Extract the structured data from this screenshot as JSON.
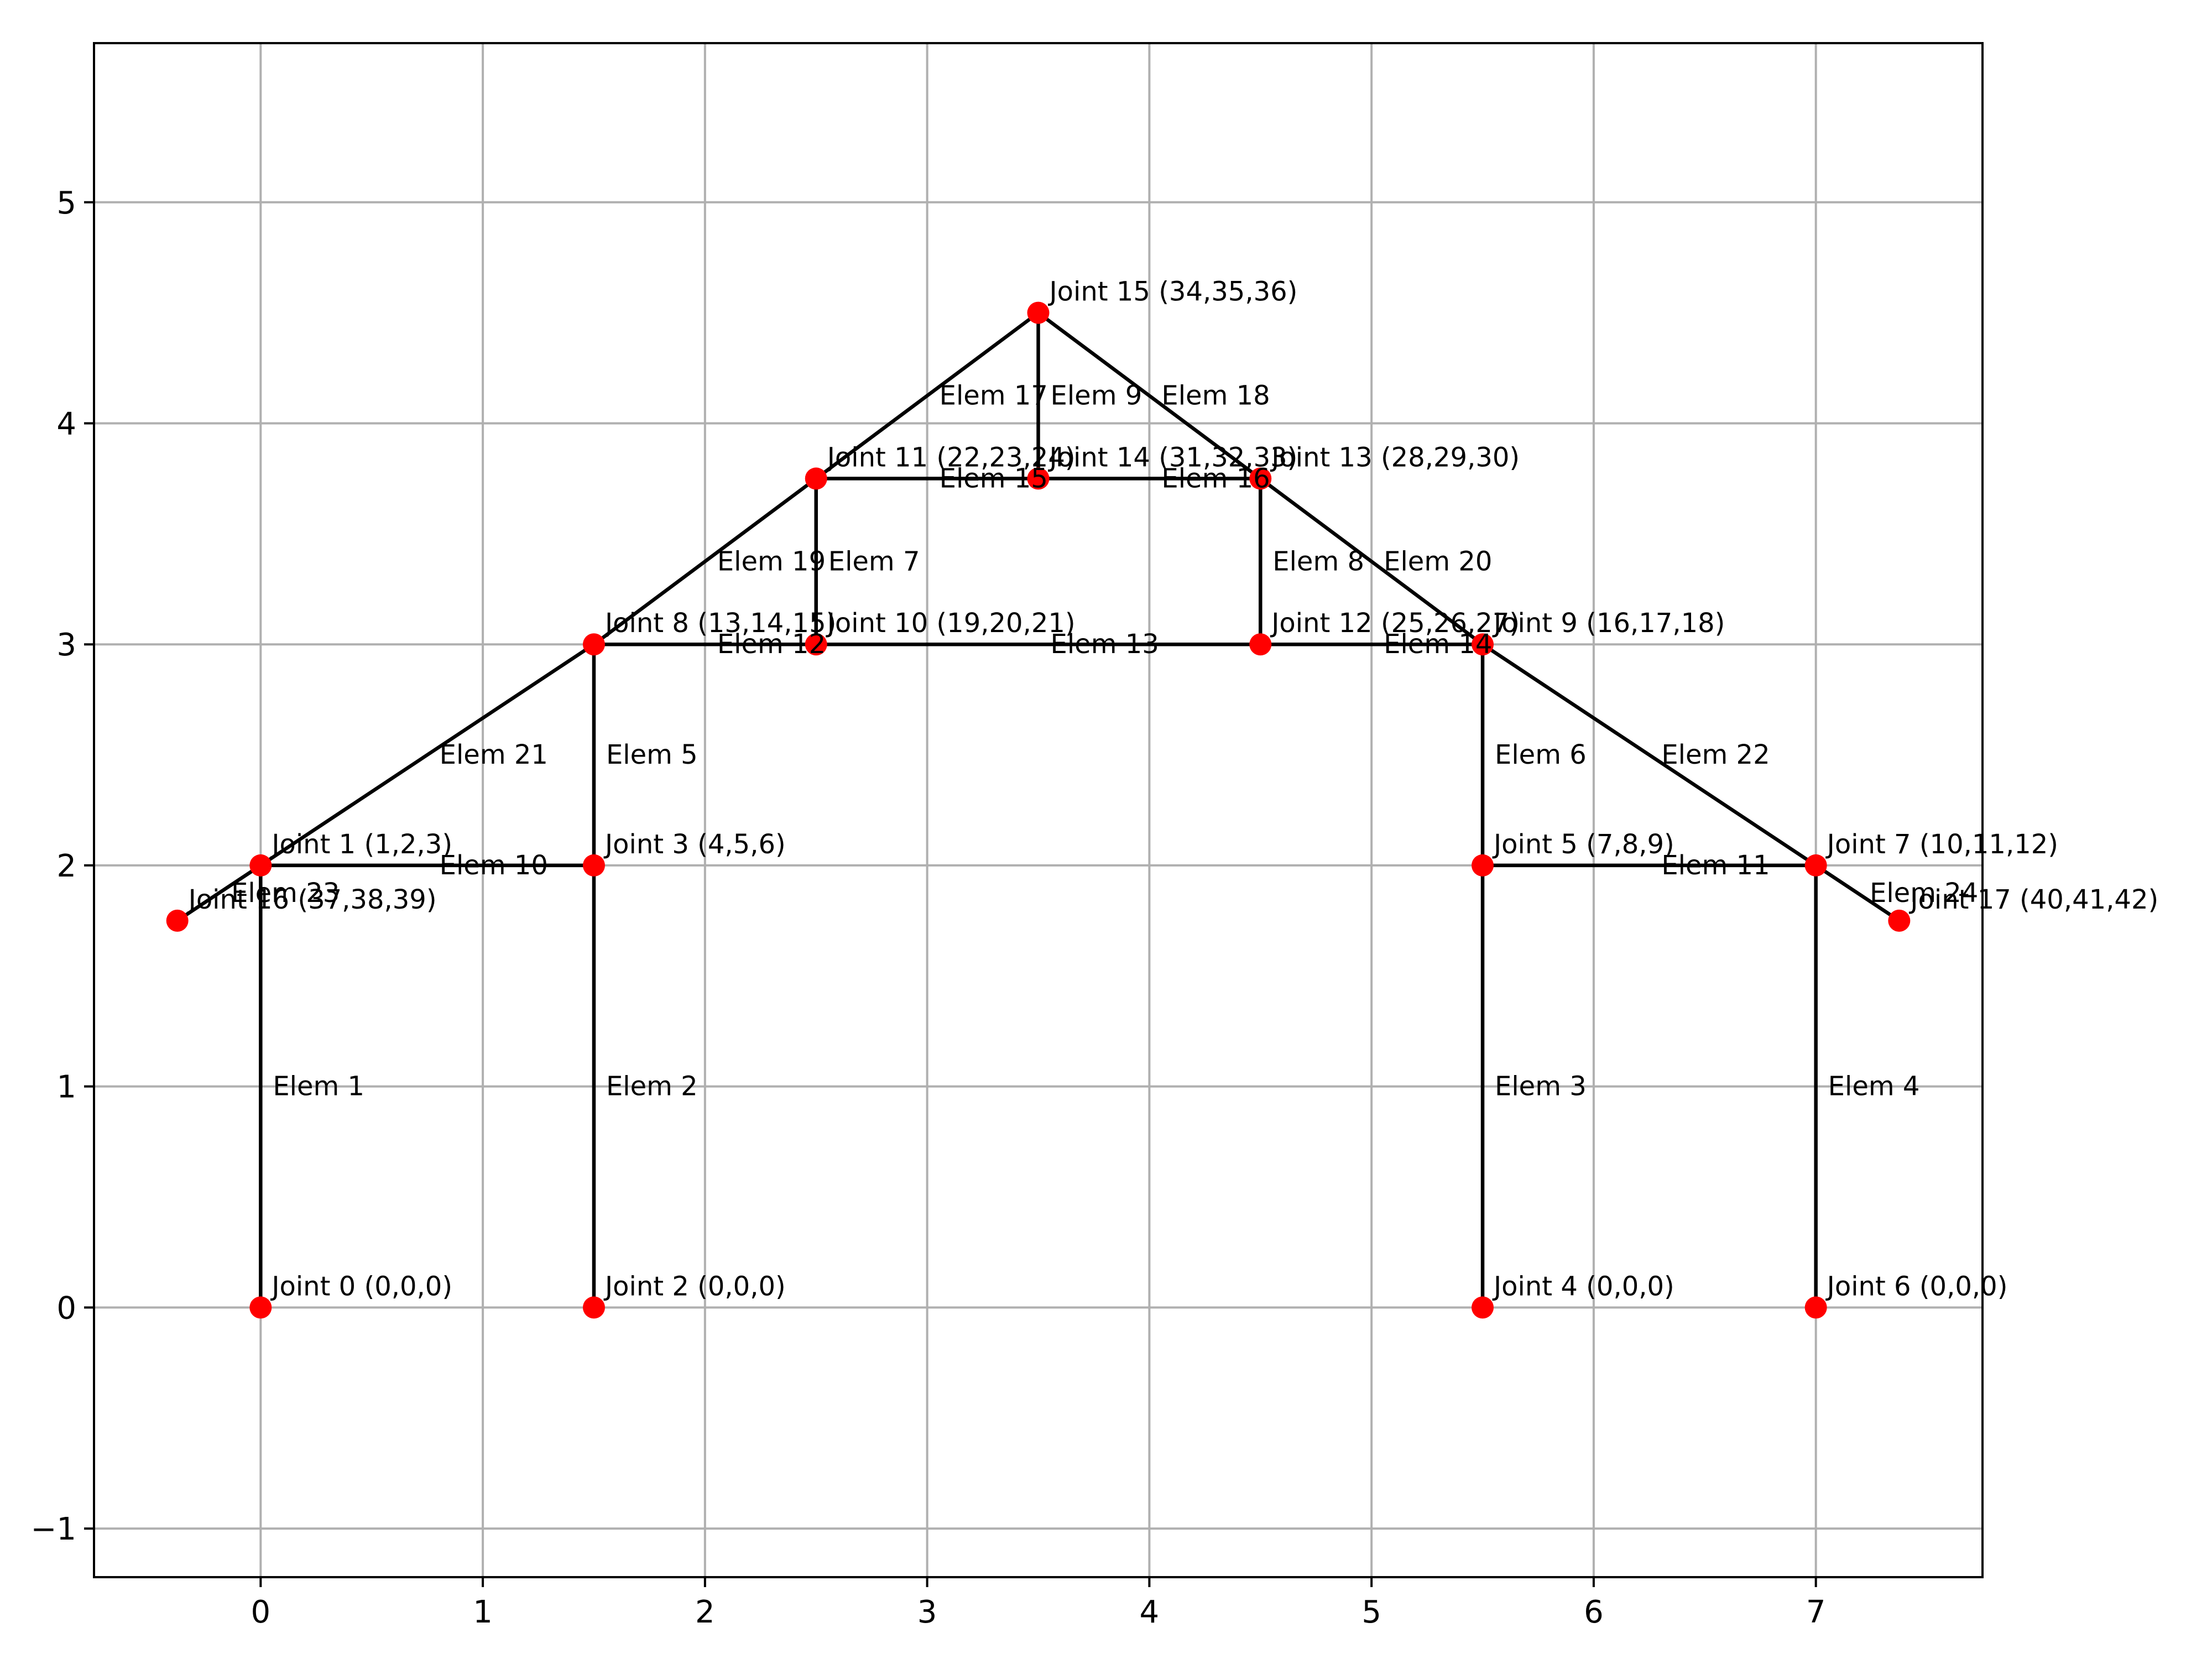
{
  "chart_data": {
    "type": "scatter",
    "title": "",
    "xlabel": "",
    "ylabel": "",
    "xlim": [
      -0.75,
      7.75
    ],
    "ylim": [
      -1.22,
      5.72
    ],
    "grid": true,
    "x_ticks": [
      0,
      1,
      2,
      3,
      4,
      5,
      6,
      7
    ],
    "y_ticks": [
      -1,
      0,
      1,
      2,
      3,
      4,
      5
    ],
    "x_tick_labels": [
      "0",
      "1",
      "2",
      "3",
      "4",
      "5",
      "6",
      "7"
    ],
    "y_tick_labels": [
      "−1",
      "0",
      "1",
      "2",
      "3",
      "4",
      "5"
    ],
    "joint_color": "#ff0000",
    "member_color": "#000000",
    "joints": [
      {
        "id": 0,
        "x": 0,
        "y": 0,
        "label": "Joint 0 (0,0,0)"
      },
      {
        "id": 1,
        "x": 0,
        "y": 2,
        "label": "Joint 1 (1,2,3)"
      },
      {
        "id": 2,
        "x": 1.5,
        "y": 0,
        "label": "Joint 2 (0,0,0)"
      },
      {
        "id": 3,
        "x": 1.5,
        "y": 2,
        "label": "Joint 3 (4,5,6)"
      },
      {
        "id": 4,
        "x": 5.5,
        "y": 0,
        "label": "Joint 4 (0,0,0)"
      },
      {
        "id": 5,
        "x": 5.5,
        "y": 2,
        "label": "Joint 5 (7,8,9)"
      },
      {
        "id": 6,
        "x": 7,
        "y": 0,
        "label": "Joint 6 (0,0,0)"
      },
      {
        "id": 7,
        "x": 7,
        "y": 2,
        "label": "Joint 7 (10,11,12)"
      },
      {
        "id": 8,
        "x": 1.5,
        "y": 3,
        "label": "Joint 8 (13,14,15)"
      },
      {
        "id": 9,
        "x": 5.5,
        "y": 3,
        "label": "Joint 9 (16,17,18)"
      },
      {
        "id": 10,
        "x": 2.5,
        "y": 3,
        "label": "Joint 10 (19,20,21)"
      },
      {
        "id": 11,
        "x": 2.5,
        "y": 3.75,
        "label": "Joint 11 (22,23,24)"
      },
      {
        "id": 12,
        "x": 4.5,
        "y": 3,
        "label": "Joint 12 (25,26,27)"
      },
      {
        "id": 13,
        "x": 4.5,
        "y": 3.75,
        "label": "Joint 13 (28,29,30)"
      },
      {
        "id": 14,
        "x": 3.5,
        "y": 3.75,
        "label": "Joint 14 (31,32,33)"
      },
      {
        "id": 15,
        "x": 3.5,
        "y": 4.5,
        "label": "Joint 15 (34,35,36)"
      },
      {
        "id": 16,
        "x": -0.375,
        "y": 1.75,
        "label": "Joint 16 (37,38,39)"
      },
      {
        "id": 17,
        "x": 7.375,
        "y": 1.75,
        "label": "Joint 17 (40,41,42)"
      }
    ],
    "elements": [
      {
        "id": 1,
        "from": 0,
        "to": 1,
        "label": "Elem 1"
      },
      {
        "id": 2,
        "from": 2,
        "to": 3,
        "label": "Elem 2"
      },
      {
        "id": 3,
        "from": 4,
        "to": 5,
        "label": "Elem 3"
      },
      {
        "id": 4,
        "from": 6,
        "to": 7,
        "label": "Elem 4"
      },
      {
        "id": 5,
        "from": 3,
        "to": 8,
        "label": "Elem 5"
      },
      {
        "id": 6,
        "from": 5,
        "to": 9,
        "label": "Elem 6"
      },
      {
        "id": 7,
        "from": 10,
        "to": 11,
        "label": "Elem 7"
      },
      {
        "id": 8,
        "from": 12,
        "to": 13,
        "label": "Elem 8"
      },
      {
        "id": 9,
        "from": 14,
        "to": 15,
        "label": "Elem 9"
      },
      {
        "id": 10,
        "from": 1,
        "to": 3,
        "label": "Elem 10"
      },
      {
        "id": 11,
        "from": 5,
        "to": 7,
        "label": "Elem 11"
      },
      {
        "id": 12,
        "from": 8,
        "to": 10,
        "label": "Elem 12"
      },
      {
        "id": 13,
        "from": 10,
        "to": 12,
        "label": "Elem 13"
      },
      {
        "id": 14,
        "from": 12,
        "to": 9,
        "label": "Elem 14"
      },
      {
        "id": 15,
        "from": 11,
        "to": 14,
        "label": "Elem 15"
      },
      {
        "id": 16,
        "from": 14,
        "to": 13,
        "label": "Elem 16"
      },
      {
        "id": 17,
        "from": 11,
        "to": 15,
        "label": "Elem 17"
      },
      {
        "id": 18,
        "from": 15,
        "to": 13,
        "label": "Elem 18"
      },
      {
        "id": 19,
        "from": 8,
        "to": 11,
        "label": "Elem 19"
      },
      {
        "id": 20,
        "from": 13,
        "to": 9,
        "label": "Elem 20"
      },
      {
        "id": 21,
        "from": 1,
        "to": 8,
        "label": "Elem 21"
      },
      {
        "id": 22,
        "from": 9,
        "to": 7,
        "label": "Elem 22"
      },
      {
        "id": 23,
        "from": 16,
        "to": 1,
        "label": "Elem 23"
      },
      {
        "id": 24,
        "from": 7,
        "to": 17,
        "label": "Elem 24"
      }
    ]
  }
}
